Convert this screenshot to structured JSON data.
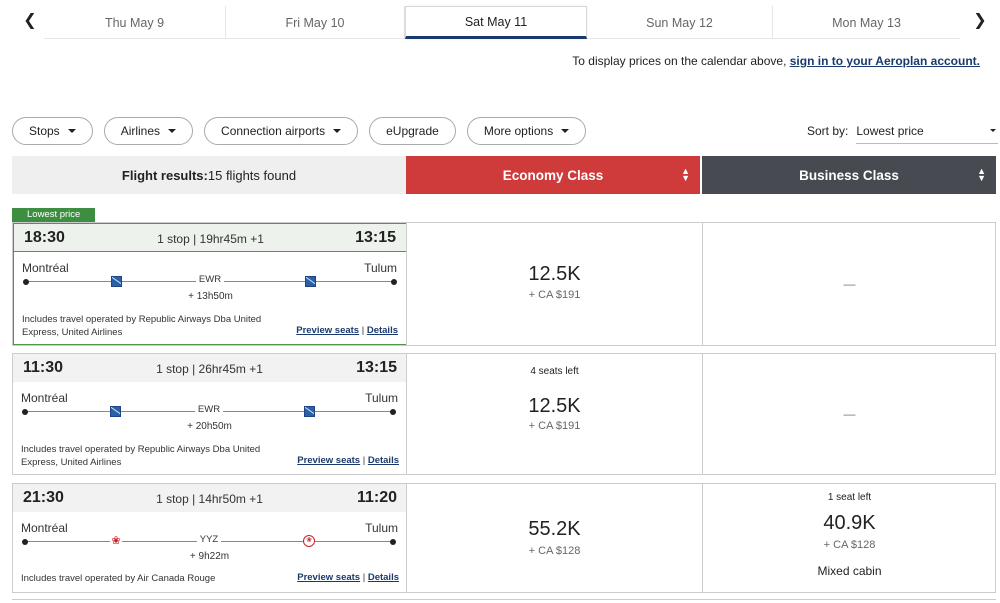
{
  "date_strip": {
    "tabs": [
      {
        "label": "Thu May 9",
        "active": false
      },
      {
        "label": "Fri May 10",
        "active": false
      },
      {
        "label": "Sat May 11",
        "active": true
      },
      {
        "label": "Sun May 12",
        "active": false
      },
      {
        "label": "Mon May 13",
        "active": false
      }
    ],
    "prev_icon": "chevron-left-icon",
    "next_icon": "chevron-right-icon"
  },
  "signin_note": {
    "text": "To display prices on the calendar above,",
    "link": "sign in to your Aeroplan account."
  },
  "filters": [
    {
      "label": "Stops",
      "has_caret": true
    },
    {
      "label": "Airlines",
      "has_caret": true
    },
    {
      "label": "Connection airports",
      "has_caret": true
    },
    {
      "label": "eUpgrade",
      "has_caret": false
    },
    {
      "label": "More options",
      "has_caret": true
    }
  ],
  "sort": {
    "label": "Sort by:",
    "value": "Lowest price"
  },
  "results_header": {
    "label": "Flight results:",
    "count": "15 flights found"
  },
  "class_headers": {
    "economy": "Economy Class",
    "business": "Business Class",
    "economy_color": "#cf3a3a",
    "business_color": "#474b51"
  },
  "lowest_price_badge": "Lowest price",
  "flights": [
    {
      "dep": "18:30",
      "arr": "13:15",
      "stops": "1 stop | 19hr45m +1",
      "from": "Montréal",
      "to": "Tulum",
      "via": "EWR",
      "layover": "+ 13h50m",
      "operated": "Includes travel operated by Republic Airways Dba United Express, United Airlines",
      "preview_seats": "Preview seats",
      "sep": "|",
      "details": "Details",
      "economy": {
        "seats_left": "",
        "points": "12.5K",
        "cash": "+ CA $191"
      },
      "business": {
        "dash": "—"
      }
    },
    {
      "dep": "11:30",
      "arr": "13:15",
      "stops": "1 stop | 26hr45m +1",
      "from": "Montréal",
      "to": "Tulum",
      "via": "EWR",
      "layover": "+ 20h50m",
      "operated": "Includes travel operated by Republic Airways Dba United Express, United Airlines",
      "preview_seats": "Preview seats",
      "sep": "|",
      "details": "Details",
      "economy": {
        "seats_left": "4 seats left",
        "points": "12.5K",
        "cash": "+ CA $191"
      },
      "business": {
        "dash": "—"
      }
    },
    {
      "dep": "21:30",
      "arr": "11:20",
      "stops": "1 stop | 14hr50m +1",
      "from": "Montréal",
      "to": "Tulum",
      "via": "YYZ",
      "layover": "+ 9h22m",
      "operated": "Includes travel operated by Air Canada Rouge",
      "preview_seats": "Preview seats",
      "sep": "|",
      "details": "Details",
      "economy": {
        "seats_left": "",
        "points": "55.2K",
        "cash": "+ CA $128"
      },
      "business": {
        "seats_left": "1 seat left",
        "points": "40.9K",
        "cash": "+ CA $128",
        "note": "Mixed cabin"
      }
    }
  ]
}
